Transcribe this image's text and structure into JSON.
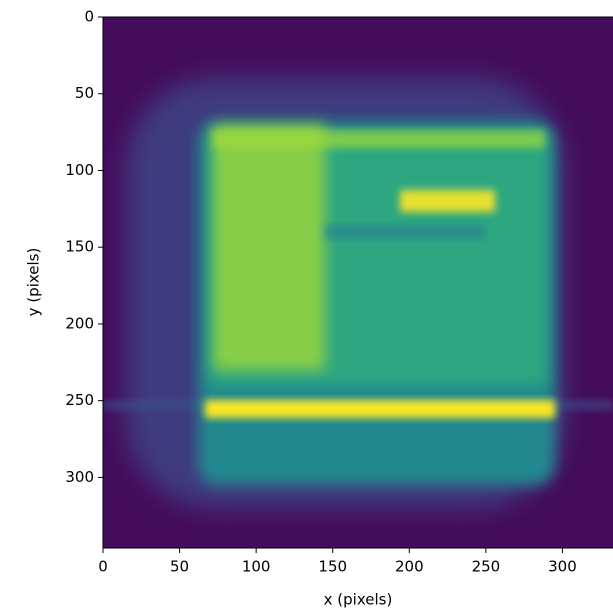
{
  "chart_data": {
    "type": "image",
    "xlabel": "x (pixels)",
    "ylabel": "y (pixels)",
    "xlim": [
      0,
      333
    ],
    "ylim": [
      346,
      0
    ],
    "xticks": [
      0,
      50,
      100,
      150,
      200,
      250,
      300
    ],
    "yticks": [
      0,
      50,
      100,
      150,
      200,
      250,
      300
    ],
    "colormap": "viridis"
  }
}
